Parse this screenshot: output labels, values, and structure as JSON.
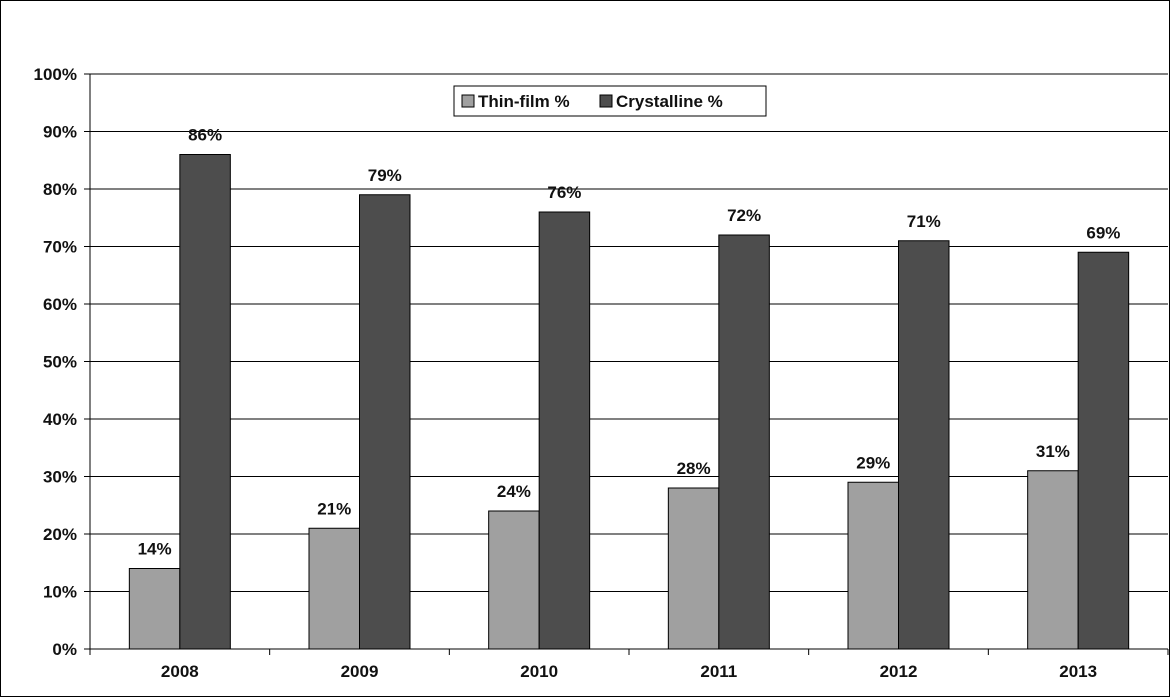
{
  "chart_data": {
    "type": "bar",
    "categories": [
      "2008",
      "2009",
      "2010",
      "2011",
      "2012",
      "2013"
    ],
    "series": [
      {
        "name": "Thin-film %",
        "values": [
          14,
          21,
          24,
          28,
          29,
          31
        ],
        "labels": [
          "14%",
          "21%",
          "24%",
          "28%",
          "29%",
          "31%"
        ],
        "color": "#a0a0a0"
      },
      {
        "name": "Crystalline %",
        "values": [
          86,
          79,
          76,
          72,
          71,
          69
        ],
        "labels": [
          "86%",
          "79%",
          "76%",
          "72%",
          "71%",
          "69%"
        ],
        "color": "#4d4d4d"
      }
    ],
    "ylim": [
      0,
      100
    ],
    "yticks": [
      0,
      10,
      20,
      30,
      40,
      50,
      60,
      70,
      80,
      90,
      100
    ],
    "ytick_labels": [
      "0%",
      "10%",
      "20%",
      "30%",
      "40%",
      "50%",
      "60%",
      "70%",
      "80%",
      "90%",
      "100%"
    ],
    "grid": true,
    "legend": "top-center",
    "title": "",
    "xlabel": "",
    "ylabel": ""
  }
}
